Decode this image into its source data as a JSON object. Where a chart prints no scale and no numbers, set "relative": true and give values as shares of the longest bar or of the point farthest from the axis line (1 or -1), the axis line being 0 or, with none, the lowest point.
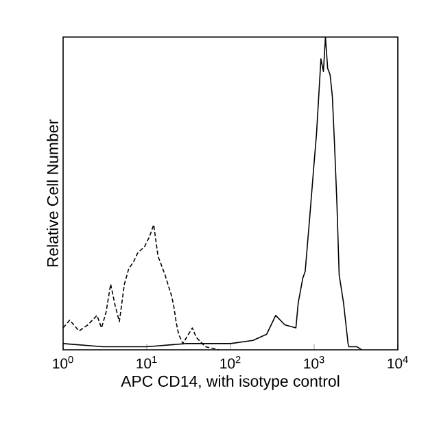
{
  "chart_data": {
    "type": "line",
    "relative": true,
    "log": "x",
    "grid": false,
    "marker": "none",
    "xlabel": "APC CD14, with isotype control",
    "ylabel": "Relative Cell Number",
    "xlim": [
      1,
      10000
    ],
    "xticks": [
      {
        "value": 1,
        "label": "10$^{0}$"
      },
      {
        "value": 10,
        "label": "10$^{1}$"
      },
      {
        "value": 100,
        "label": "10$^{2}$"
      },
      {
        "value": 1000,
        "label": "10$^{3}$"
      },
      {
        "value": 10000,
        "label": "10$^{4}$"
      }
    ],
    "series": [
      {
        "color": "#000000",
        "line_style": "dashed",
        "x": [
          1,
          1.2,
          1.55,
          1.98,
          2.54,
          2.88,
          3.26,
          3.7,
          4.2,
          4.7,
          5.4,
          6.1,
          6.9,
          7.8,
          9.4,
          10.7,
          12.1,
          13.6,
          16.5,
          19.9,
          21,
          22.4,
          24,
          27,
          35,
          39,
          50,
          73
        ],
        "values": [
          0.07,
          0.095,
          0.06,
          0.08,
          0.11,
          0.07,
          0.12,
          0.21,
          0.14,
          0.09,
          0.21,
          0.26,
          0.28,
          0.31,
          0.33,
          0.36,
          0.4,
          0.3,
          0.24,
          0.17,
          0.14,
          0.09,
          0.05,
          0.02,
          0.07,
          0.04,
          0.01,
          0
        ]
      },
      {
        "color": "#000000",
        "line_style": "solid",
        "x": [
          1,
          3,
          10,
          30,
          60,
          100,
          186,
          271,
          347,
          446,
          605,
          645,
          733,
          781,
          883,
          1000,
          1067,
          1205,
          1290,
          1365,
          1450,
          1550,
          1650,
          1750,
          1870,
          1990,
          2245,
          2400,
          2540,
          2600,
          3240,
          3700
        ],
        "values": [
          0.02,
          0.01,
          0.01,
          0.02,
          0.02,
          0.02,
          0.03,
          0.05,
          0.11,
          0.08,
          0.07,
          0.15,
          0.23,
          0.25,
          0.42,
          0.6,
          0.69,
          0.93,
          0.89,
          1.0,
          0.9,
          0.88,
          0.81,
          0.66,
          0.47,
          0.24,
          0.15,
          0.08,
          0.02,
          0.01,
          0.01,
          0
        ]
      }
    ]
  }
}
